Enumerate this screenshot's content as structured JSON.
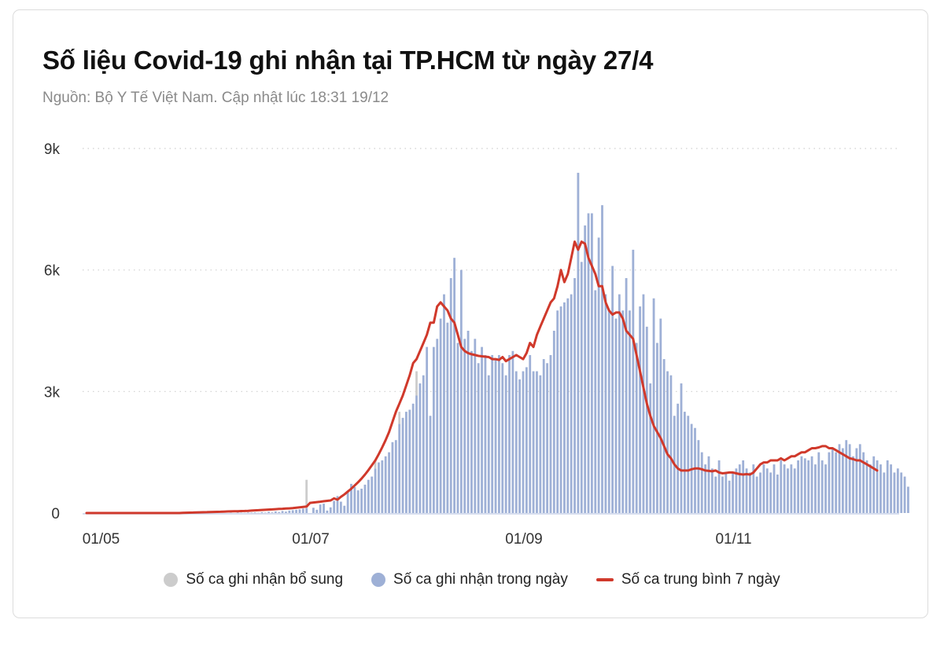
{
  "header": {
    "title": "Số liệu Covid-19 ghi nhận tại TP.HCM từ ngày 27/4",
    "subtitle": "Nguồn: Bộ Y Tế Việt Nam. Cập nhật lúc 18:31 19/12"
  },
  "legend": {
    "items": [
      {
        "label": "Số ca ghi nhận bổ sung",
        "color": "#cccccc",
        "shape": "dot"
      },
      {
        "label": "Số ca ghi nhận trong ngày",
        "color": "#9eb0d6",
        "shape": "dot"
      },
      {
        "label": "Số ca trung bình 7 ngày",
        "color": "#d0392b",
        "shape": "line"
      }
    ]
  },
  "colors": {
    "daily": "#9eb0d6",
    "supplementary": "#cccccc",
    "avg": "#d0392b",
    "grid": "#cccccc"
  },
  "chart_data": {
    "type": "bar",
    "title": "Số liệu Covid-19 ghi nhận tại TP.HCM từ ngày 27/4",
    "subtitle": "Nguồn: Bộ Y Tế Việt Nam. Cập nhật lúc 18:31 19/12",
    "xlabel": "",
    "ylabel": "",
    "ylim": [
      0,
      9000
    ],
    "yticks": [
      0,
      3000,
      6000,
      9000
    ],
    "ytick_labels": [
      "0",
      "3k",
      "6k",
      "9k"
    ],
    "x_start": "27/04",
    "x_end": "19/12",
    "xtick_labels": [
      "01/05",
      "01/07",
      "01/09",
      "01/11"
    ],
    "xtick_day_index": [
      4,
      65,
      127,
      188
    ],
    "grid": "horizontal dotted",
    "legend_position": "bottom",
    "series": [
      {
        "name": "Số ca ghi nhận trong ngày",
        "type": "bar",
        "color": "#9eb0d6",
        "values": [
          0,
          0,
          0,
          0,
          0,
          0,
          0,
          0,
          0,
          0,
          0,
          0,
          0,
          0,
          0,
          0,
          0,
          0,
          0,
          0,
          0,
          0,
          0,
          0,
          0,
          0,
          0,
          0,
          0,
          0,
          0,
          0,
          0,
          0,
          0,
          0,
          0,
          0,
          0,
          0,
          0,
          0,
          5,
          0,
          10,
          8,
          5,
          12,
          10,
          15,
          8,
          20,
          10,
          30,
          15,
          40,
          25,
          50,
          35,
          60,
          70,
          80,
          90,
          110,
          120,
          0,
          130,
          80,
          210,
          230,
          60,
          140,
          300,
          420,
          280,
          180,
          520,
          720,
          640,
          560,
          600,
          700,
          820,
          900,
          1100,
          1250,
          1300,
          1400,
          1500,
          1750,
          1800,
          2200,
          2350,
          2500,
          2550,
          2700,
          2900,
          3200,
          3400,
          4100,
          2400,
          4100,
          4300,
          4800,
          5400,
          4700,
          5800,
          6300,
          4200,
          6000,
          4300,
          4500,
          4000,
          4300,
          3700,
          4100,
          3900,
          3400,
          3900,
          3800,
          3900,
          3700,
          3400,
          3900,
          4000,
          3500,
          3300,
          3500,
          3600,
          3900,
          3500,
          3500,
          3400,
          3800,
          3700,
          3900,
          4500,
          5000,
          5100,
          5200,
          5300,
          5400,
          5800,
          8400,
          6200,
          7100,
          7400,
          7400,
          5500,
          6800,
          7600,
          5400,
          5000,
          6100,
          4800,
          5400,
          5000,
          5800,
          5000,
          6500,
          4200,
          5100,
          5400,
          4600,
          3200,
          5300,
          4200,
          4800,
          3800,
          3500,
          3400,
          2400,
          2700,
          3200,
          2500,
          2400,
          2200,
          2100,
          1800,
          1500,
          1200,
          1400,
          1100,
          900,
          1300,
          900,
          1000,
          800,
          1000,
          1100,
          1200,
          1300,
          1100,
          1000,
          1200,
          900,
          1000,
          1200,
          1100,
          1000,
          1200,
          950,
          1300,
          1200,
          1100,
          1200,
          1100,
          1300,
          1400,
          1350,
          1300,
          1400,
          1200,
          1500,
          1300,
          1200,
          1500,
          1600,
          1500,
          1700,
          1600,
          1800,
          1700,
          1400,
          1600,
          1700,
          1500,
          1300,
          1200,
          1400,
          1300,
          1200,
          1000,
          1300,
          1200,
          1000,
          1100,
          1000,
          900,
          650
        ]
      },
      {
        "name": "Số ca ghi nhận bổ sung",
        "type": "bar",
        "color": "#cccccc",
        "stacked_on": "Số ca ghi nhận trong ngày",
        "values_by_day_index": {
          "64": 700,
          "84": 200,
          "91": 300,
          "96": 600
        }
      },
      {
        "name": "Số ca trung bình 7 ngày",
        "type": "line",
        "color": "#d0392b",
        "values": [
          0,
          0,
          0,
          0,
          0,
          0,
          0,
          0,
          0,
          0,
          0,
          0,
          0,
          0,
          0,
          0,
          0,
          0,
          0,
          0,
          0,
          0,
          0,
          0,
          0,
          0,
          0,
          0,
          5,
          8,
          10,
          12,
          15,
          18,
          20,
          22,
          25,
          28,
          30,
          32,
          35,
          38,
          40,
          42,
          45,
          48,
          50,
          55,
          60,
          65,
          70,
          75,
          80,
          85,
          90,
          95,
          100,
          105,
          110,
          115,
          120,
          130,
          140,
          150,
          160,
          250,
          260,
          270,
          280,
          290,
          300,
          310,
          360,
          330,
          400,
          460,
          530,
          600,
          680,
          760,
          850,
          950,
          1060,
          1180,
          1300,
          1450,
          1620,
          1800,
          2000,
          2250,
          2500,
          2700,
          2900,
          3150,
          3400,
          3700,
          3800,
          4000,
          4200,
          4400,
          4700,
          4700,
          5100,
          5200,
          5100,
          5000,
          4800,
          4700,
          4400,
          4100,
          4000,
          3950,
          3920,
          3900,
          3880,
          3870,
          3860,
          3850,
          3800,
          3800,
          3780,
          3850,
          3750,
          3800,
          3850,
          3900,
          3850,
          3800,
          3950,
          4200,
          4100,
          4400,
          4600,
          4800,
          5000,
          5200,
          5300,
          5600,
          6000,
          5700,
          5900,
          6300,
          6700,
          6500,
          6700,
          6650,
          6300,
          6100,
          5900,
          5600,
          5600,
          5200,
          5000,
          4900,
          4950,
          4950,
          4800,
          4500,
          4400,
          4300,
          3900,
          3500,
          3100,
          2700,
          2400,
          2150,
          2000,
          1850,
          1650,
          1450,
          1350,
          1200,
          1100,
          1050,
          1050,
          1050,
          1080,
          1100,
          1100,
          1080,
          1050,
          1040,
          1030,
          1050,
          1000,
          980,
          990,
          1000,
          1000,
          980,
          960,
          950,
          960,
          950,
          1000,
          1100,
          1200,
          1250,
          1250,
          1300,
          1300,
          1300,
          1350,
          1300,
          1350,
          1400,
          1400,
          1450,
          1500,
          1500,
          1550,
          1600,
          1600,
          1620,
          1650,
          1650,
          1600,
          1600,
          1550,
          1500,
          1450,
          1400,
          1350,
          1330,
          1300,
          1300,
          1250,
          1200,
          1150,
          1100,
          1050
        ]
      }
    ]
  }
}
